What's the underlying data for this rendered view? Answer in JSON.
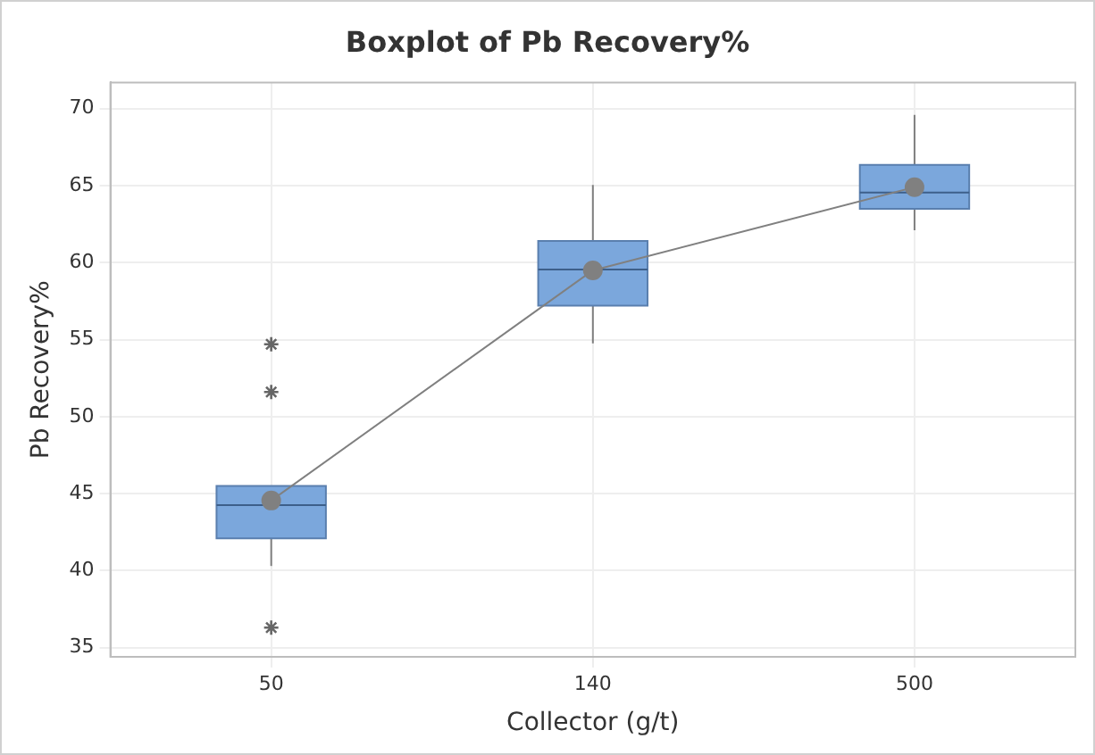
{
  "chart_data": {
    "type": "box",
    "title": "Boxplot of Pb Recovery%",
    "xlabel": "Collector (g/t)",
    "ylabel": "Pb Recovery%",
    "categories": [
      "50",
      "140",
      "500"
    ],
    "series": [
      {
        "color": "#7ba7dc",
        "boxes": [
          {
            "low": 40.3,
            "q1": 42.1,
            "median": 44.25,
            "q3": 45.5,
            "high": 45.5,
            "outliers": [
              54.7,
              51.6,
              36.3
            ]
          },
          {
            "low": 54.75,
            "q1": 57.2,
            "median": 59.55,
            "q3": 61.4,
            "high": 65.05
          },
          {
            "low": 62.1,
            "q1": 63.5,
            "median": 64.55,
            "q3": 66.35,
            "high": 69.6
          }
        ]
      },
      {
        "type": "line",
        "color": "#808080",
        "x": [
          "50",
          "140",
          "500"
        ],
        "values": [
          44.55,
          59.5,
          64.9
        ],
        "marker": "circle"
      }
    ],
    "ylim": [
      34.4,
      71.7
    ],
    "yticks": [
      35,
      40,
      45,
      50,
      55,
      60,
      65,
      70
    ],
    "grid": true,
    "legend": false
  }
}
